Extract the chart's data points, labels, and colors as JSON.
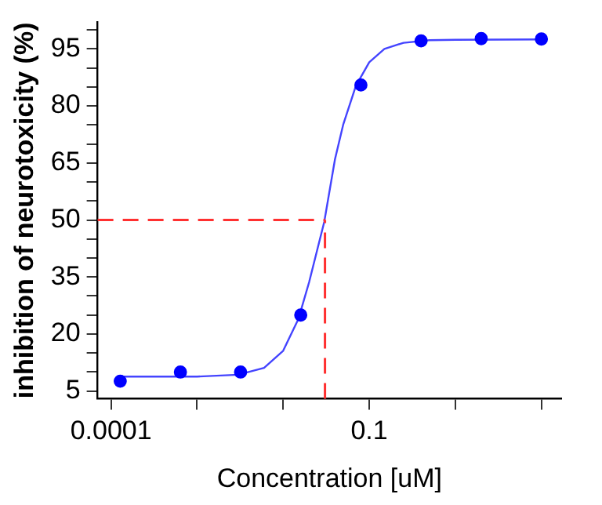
{
  "chart_data": {
    "type": "scatter",
    "xlabel": "Concentration [uM]",
    "ylabel": "inhibition of neurotoxicity (%)",
    "log": "x",
    "grid": false,
    "xlim": [
      7e-05,
      17
    ],
    "xticks": [
      0.0001,
      {
        "value": 0.001,
        "label": null
      },
      {
        "value": 0.01,
        "label": null
      },
      0.1,
      {
        "value": 1,
        "label": null
      },
      {
        "value": 10,
        "label": null
      }
    ],
    "ylim": [
      3,
      102
    ],
    "yticks": [
      5,
      {
        "value": 10,
        "label": null
      },
      {
        "value": 15,
        "label": null
      },
      20,
      {
        "value": 25,
        "label": null
      },
      {
        "value": 30,
        "label": null
      },
      35,
      {
        "value": 40,
        "label": null
      },
      {
        "value": 45,
        "label": null
      },
      50,
      {
        "value": 55,
        "label": null
      },
      {
        "value": 60,
        "label": null
      },
      65,
      {
        "value": 70,
        "label": null
      },
      {
        "value": 75,
        "label": null
      },
      80,
      {
        "value": 85,
        "label": null
      },
      {
        "value": 90,
        "label": null
      },
      95,
      {
        "value": 100,
        "label": null
      }
    ],
    "series": [
      {
        "type": "scatter",
        "color": "#0000ff",
        "marker": "circle",
        "x": [
          0.000128,
          0.00064,
          0.0032,
          0.016,
          0.08,
          0.4,
          2,
          10
        ],
        "values": [
          7.6,
          10,
          10,
          25,
          85.5,
          97.1,
          97.7,
          97.6
        ]
      },
      {
        "type": "line",
        "color": "#4444ff",
        "marker": "none",
        "x": [
          0.000125,
          0.0005,
          0.001,
          0.003,
          0.006,
          0.01,
          0.015,
          0.02,
          0.03,
          0.04,
          0.05,
          0.07,
          0.1,
          0.15,
          0.25,
          0.5,
          1,
          10
        ],
        "values": [
          8.8,
          8.8,
          8.8,
          9.3,
          11.1,
          15.6,
          23.9,
          33.6,
          49.5,
          66,
          75.2,
          85.3,
          91.5,
          95,
          96.6,
          97.3,
          97.4,
          97.5
        ]
      }
    ],
    "ref_lines": [
      {
        "axis": "y",
        "value": 50,
        "color": "#ff3030",
        "line_style": "dashed"
      },
      {
        "axis": "x",
        "value": 0.0306,
        "color": "#ff3030",
        "line_style": "dashed"
      }
    ]
  }
}
